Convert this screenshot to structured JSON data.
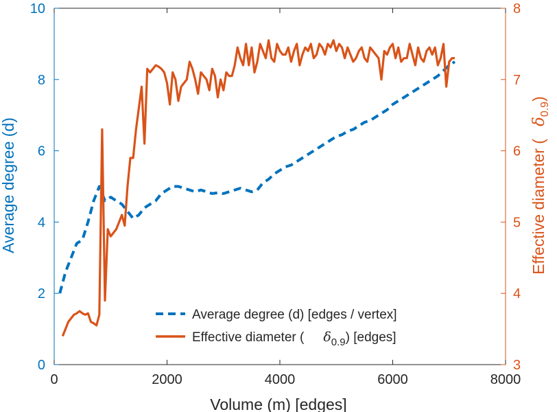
{
  "chart_data": {
    "type": "line",
    "xlabel": "Volume (m) [edges]",
    "ylabel_left": "Average degree (d)",
    "ylabel_right_main": "Effective diameter (",
    "ylabel_right_sym": "δ",
    "ylabel_right_sub": "0.9",
    "ylabel_right_close": ")",
    "xlim": [
      0,
      8000
    ],
    "ylim_left": [
      0,
      10
    ],
    "ylim_right": [
      3,
      8
    ],
    "xticks": [
      0,
      2000,
      4000,
      6000,
      8000
    ],
    "xtick_labels": [
      "0",
      "2000",
      "4000",
      "6000",
      "8000"
    ],
    "yticks_left": [
      0,
      2,
      4,
      6,
      8,
      10
    ],
    "ytick_labels_left": [
      "0",
      "2",
      "4",
      "6",
      "8",
      "10"
    ],
    "yticks_right": [
      3,
      4,
      5,
      6,
      7,
      8
    ],
    "ytick_labels_right": [
      "3",
      "4",
      "5",
      "6",
      "7",
      "8"
    ],
    "left_color": "#0072BD",
    "right_color": "#D95319",
    "grid": false,
    "legend_position": "bottom-right",
    "legend": [
      {
        "label": "Average degree (d) [edges / vertex]"
      },
      {
        "label_main": "Effective diameter (",
        "label_sym": "δ",
        "label_sub": "0.9",
        "label_close": ") [edges]"
      }
    ],
    "series": [
      {
        "name": "Average degree (d) [edges / vertex]",
        "axis": "left",
        "style": "dashed",
        "x": [
          100,
          200,
          300,
          400,
          500,
          600,
          700,
          800,
          900,
          1000,
          1100,
          1200,
          1300,
          1400,
          1500,
          1600,
          1700,
          1800,
          1900,
          2000,
          2100,
          2200,
          2300,
          2400,
          2500,
          2600,
          2700,
          2800,
          2900,
          3000,
          3100,
          3200,
          3300,
          3400,
          3500,
          3600,
          3700,
          3800,
          3900,
          4000,
          4100,
          4200,
          4300,
          4400,
          4500,
          4600,
          4700,
          4800,
          4900,
          5000,
          5100,
          5200,
          5300,
          5400,
          5500,
          5600,
          5700,
          5800,
          5900,
          6000,
          6100,
          6200,
          6300,
          6400,
          6500,
          6600,
          6700,
          6800,
          6900,
          7000,
          7100
        ],
        "y": [
          2.0,
          2.6,
          3.0,
          3.4,
          3.5,
          4.0,
          4.6,
          5.0,
          4.6,
          4.7,
          4.6,
          4.5,
          4.3,
          4.1,
          4.2,
          4.4,
          4.5,
          4.6,
          4.8,
          4.9,
          5.0,
          5.0,
          4.95,
          4.9,
          4.85,
          4.9,
          4.85,
          4.8,
          4.82,
          4.8,
          4.85,
          4.9,
          4.95,
          4.9,
          4.85,
          4.9,
          5.1,
          5.2,
          5.35,
          5.45,
          5.55,
          5.6,
          5.7,
          5.8,
          5.9,
          6.0,
          6.1,
          6.2,
          6.3,
          6.4,
          6.45,
          6.55,
          6.6,
          6.7,
          6.8,
          6.85,
          6.95,
          7.05,
          7.15,
          7.3,
          7.4,
          7.5,
          7.6,
          7.7,
          7.8,
          7.9,
          8.0,
          8.1,
          8.25,
          8.4,
          8.5
        ]
      },
      {
        "name": "Effective diameter (δ0.9) [edges]",
        "axis": "right",
        "style": "solid",
        "x": [
          150,
          200,
          250,
          300,
          350,
          400,
          450,
          500,
          550,
          600,
          650,
          700,
          750,
          800,
          850,
          900,
          950,
          1000,
          1050,
          1100,
          1150,
          1200,
          1250,
          1300,
          1350,
          1400,
          1450,
          1500,
          1550,
          1600,
          1650,
          1700,
          1750,
          1800,
          1850,
          1900,
          1950,
          2000,
          2050,
          2100,
          2150,
          2200,
          2250,
          2300,
          2350,
          2400,
          2450,
          2500,
          2550,
          2600,
          2650,
          2700,
          2750,
          2800,
          2850,
          2900,
          2950,
          3000,
          3050,
          3100,
          3150,
          3200,
          3250,
          3300,
          3350,
          3400,
          3450,
          3500,
          3550,
          3600,
          3650,
          3700,
          3750,
          3800,
          3850,
          3900,
          3950,
          4000,
          4050,
          4100,
          4150,
          4200,
          4250,
          4300,
          4350,
          4400,
          4450,
          4500,
          4550,
          4600,
          4650,
          4700,
          4750,
          4800,
          4850,
          4900,
          4950,
          5000,
          5050,
          5100,
          5150,
          5200,
          5250,
          5300,
          5350,
          5400,
          5450,
          5500,
          5550,
          5600,
          5650,
          5700,
          5750,
          5800,
          5850,
          5900,
          5950,
          6000,
          6050,
          6100,
          6150,
          6200,
          6250,
          6300,
          6350,
          6400,
          6450,
          6500,
          6550,
          6600,
          6650,
          6700,
          6750,
          6800,
          6850,
          6900,
          6950,
          7000,
          7050,
          7100
        ],
        "y": [
          3.4,
          3.5,
          3.6,
          3.65,
          3.7,
          3.72,
          3.75,
          3.72,
          3.7,
          3.72,
          3.6,
          3.58,
          3.55,
          3.7,
          6.3,
          3.9,
          4.9,
          4.8,
          4.85,
          4.9,
          5.0,
          5.1,
          4.95,
          5.5,
          5.9,
          5.9,
          6.3,
          6.6,
          6.9,
          6.1,
          7.15,
          7.1,
          7.15,
          7.2,
          7.18,
          7.15,
          7.1,
          6.95,
          6.65,
          7.1,
          7.0,
          6.7,
          6.9,
          6.95,
          7.0,
          7.25,
          7.15,
          7.0,
          6.8,
          7.1,
          7.05,
          7.0,
          6.85,
          7.15,
          7.05,
          6.75,
          7.0,
          6.85,
          7.1,
          7.05,
          7.05,
          7.2,
          7.45,
          7.3,
          7.2,
          7.5,
          7.2,
          7.45,
          7.1,
          7.25,
          7.5,
          7.4,
          7.3,
          7.55,
          7.3,
          7.25,
          7.5,
          7.4,
          7.35,
          7.35,
          7.45,
          7.25,
          7.4,
          7.5,
          7.2,
          7.35,
          7.45,
          7.4,
          7.5,
          7.3,
          7.35,
          7.5,
          7.45,
          7.35,
          7.5,
          7.45,
          7.55,
          7.4,
          7.5,
          7.45,
          7.3,
          7.45,
          7.35,
          7.25,
          7.3,
          7.4,
          7.45,
          7.3,
          7.25,
          7.45,
          7.4,
          7.35,
          7.3,
          7.0,
          7.4,
          7.35,
          7.45,
          7.5,
          7.3,
          7.45,
          7.25,
          7.3,
          7.3,
          7.5,
          7.35,
          7.2,
          7.45,
          7.3,
          7.25,
          7.4,
          7.45,
          7.35,
          7.45,
          7.2,
          7.3,
          7.5,
          6.9,
          7.25,
          7.3,
          7.3
        ]
      }
    ]
  }
}
